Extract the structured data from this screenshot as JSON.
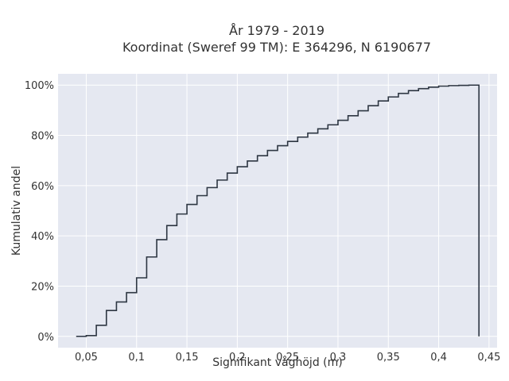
{
  "chart_data": {
    "type": "line",
    "line_shape": "step",
    "title": [
      "År 1979 - 2019",
      "Koordinat (Sweref 99 TM): E 364296, N 6190677"
    ],
    "xlabel": "Signifikant våghöjd (m)",
    "ylabel": "Kumulativ andel",
    "xlim": [
      0.022,
      0.458
    ],
    "ylim": [
      -0.045,
      1.045
    ],
    "x_ticks": [
      0.05,
      0.1,
      0.15,
      0.2,
      0.25,
      0.3,
      0.35,
      0.4,
      0.45
    ],
    "x_tick_labels": [
      "0,05",
      "0,1",
      "0,15",
      "0,2",
      "0,25",
      "0,3",
      "0,35",
      "0,4",
      "0,45"
    ],
    "y_ticks": [
      0,
      0.2,
      0.4,
      0.6,
      0.8,
      1.0
    ],
    "y_tick_labels": [
      "0%",
      "20%",
      "40%",
      "60%",
      "80%",
      "100%"
    ],
    "grid": true,
    "colors": {
      "plot_bg": "#e5e8f1",
      "grid": "#ffffff",
      "line": "#2d3642",
      "text": "#333333"
    },
    "series": [
      {
        "x": [
          0.04,
          0.05,
          0.06,
          0.07,
          0.08,
          0.09,
          0.1,
          0.11,
          0.12,
          0.13,
          0.14,
          0.15,
          0.16,
          0.17,
          0.18,
          0.19,
          0.2,
          0.21,
          0.22,
          0.23,
          0.24,
          0.25,
          0.26,
          0.27,
          0.28,
          0.29,
          0.3,
          0.31,
          0.32,
          0.33,
          0.34,
          0.35,
          0.36,
          0.37,
          0.38,
          0.39,
          0.4,
          0.41,
          0.42,
          0.43,
          0.44,
          0.44
        ],
        "y": [
          0.0,
          0.003,
          0.044,
          0.103,
          0.137,
          0.174,
          0.233,
          0.316,
          0.385,
          0.441,
          0.487,
          0.525,
          0.56,
          0.592,
          0.622,
          0.65,
          0.675,
          0.698,
          0.719,
          0.74,
          0.759,
          0.776,
          0.793,
          0.809,
          0.826,
          0.842,
          0.86,
          0.878,
          0.898,
          0.918,
          0.937,
          0.953,
          0.967,
          0.978,
          0.986,
          0.992,
          0.996,
          0.998,
          0.999,
          1.0,
          1.0,
          0.0
        ]
      }
    ]
  }
}
